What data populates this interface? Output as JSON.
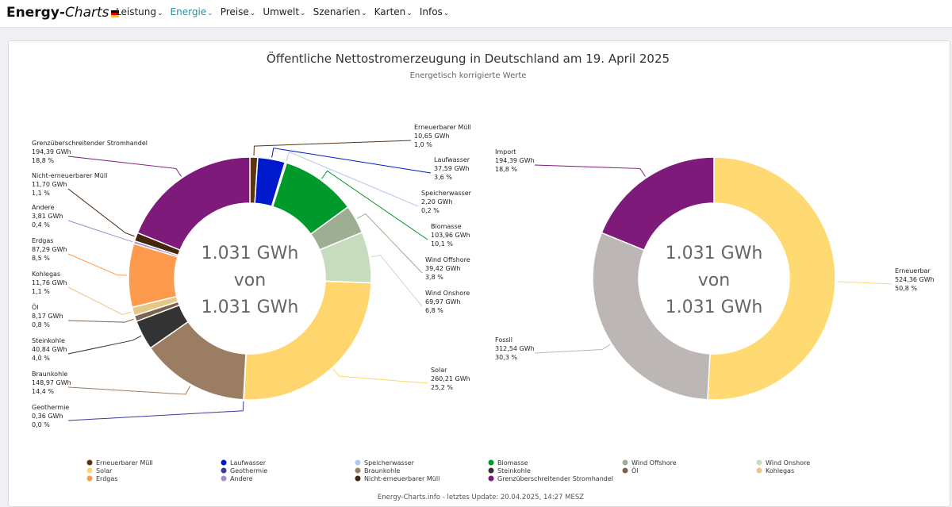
{
  "nav": {
    "brand_bold": "Energy-",
    "brand_italic": "Charts",
    "items": [
      {
        "label": "Leistung",
        "active": false
      },
      {
        "label": "Energie",
        "active": true
      },
      {
        "label": "Preise",
        "active": false
      },
      {
        "label": "Umwelt",
        "active": false
      },
      {
        "label": "Szenarien",
        "active": false
      },
      {
        "label": "Karten",
        "active": false
      },
      {
        "label": "Infos",
        "active": false
      }
    ]
  },
  "chart_data": [
    {
      "type": "pie",
      "title": "Öffentliche Nettostromerzeugung in Deutschland am 19. April 2025",
      "subtitle": "Energetisch korrigierte Werte",
      "center_text": [
        "1.031 GWh",
        "von",
        "1.031 GWh"
      ],
      "unit": "GWh",
      "slices": [
        {
          "name": "Erneuerbarer Müll",
          "value": 10.65,
          "value_label": "10,65 GWh",
          "percent_label": "1,0 %",
          "color": "#5b3410"
        },
        {
          "name": "Laufwasser",
          "value": 37.59,
          "value_label": "37,59 GWh",
          "percent_label": "3,6 %",
          "color": "#0019cc"
        },
        {
          "name": "Speicherwasser",
          "value": 2.2,
          "value_label": "2,20 GWh",
          "percent_label": "0,2 %",
          "color": "#b3c7ee"
        },
        {
          "name": "Biomasse",
          "value": 103.96,
          "value_label": "103,96 GWh",
          "percent_label": "10,1 %",
          "color": "#009a2c"
        },
        {
          "name": "Wind Offshore",
          "value": 39.42,
          "value_label": "39,42 GWh",
          "percent_label": "3,8 %",
          "color": "#9dae92"
        },
        {
          "name": "Wind Onshore",
          "value": 69.97,
          "value_label": "69,97 GWh",
          "percent_label": "6,8 %",
          "color": "#c7dcbf"
        },
        {
          "name": "Solar",
          "value": 260.21,
          "value_label": "260,21 GWh",
          "percent_label": "25,2 %",
          "color": "#ffd66e"
        },
        {
          "name": "Geothermie",
          "value": 0.36,
          "value_label": "0,36 GWh",
          "percent_label": "0,0 %",
          "color": "#3b3ba0"
        },
        {
          "name": "Braunkohle",
          "value": 148.97,
          "value_label": "148,97 GWh",
          "percent_label": "14,4 %",
          "color": "#9a7d63"
        },
        {
          "name": "Steinkohle",
          "value": 40.84,
          "value_label": "40,84 GWh",
          "percent_label": "4,0 %",
          "color": "#333333"
        },
        {
          "name": "Öl",
          "value": 8.17,
          "value_label": "8,17 GWh",
          "percent_label": "0,8 %",
          "color": "#7d6250"
        },
        {
          "name": "Kohlegas",
          "value": 11.76,
          "value_label": "11,76 GWh",
          "percent_label": "1,1 %",
          "color": "#e6c886"
        },
        {
          "name": "Erdgas",
          "value": 87.29,
          "value_label": "87,29 GWh",
          "percent_label": "8,5 %",
          "color": "#fd9a4d"
        },
        {
          "name": "Andere",
          "value": 3.81,
          "value_label": "3,81 GWh",
          "percent_label": "0,4 %",
          "color": "#a38ed1"
        },
        {
          "name": "Nicht-erneuerbarer Müll",
          "value": 11.7,
          "value_label": "11,70 GWh",
          "percent_label": "1,1 %",
          "color": "#43260b"
        },
        {
          "name": "Grenzüberschreitender Stromhandel",
          "value": 194.39,
          "value_label": "194,39 GWh",
          "percent_label": "18,8 %",
          "color": "#7d1a7a"
        }
      ]
    },
    {
      "type": "pie",
      "center_text": [
        "1.031 GWh",
        "von",
        "1.031 GWh"
      ],
      "unit": "GWh",
      "slices": [
        {
          "name": "Erneuerbar",
          "value": 524.36,
          "value_label": "524,36 GWh",
          "percent_label": "50,8 %",
          "color": "#ffda73"
        },
        {
          "name": "Fossil",
          "value": 312.54,
          "value_label": "312,54 GWh",
          "percent_label": "30,3 %",
          "color": "#bcb7b4"
        },
        {
          "name": "Import",
          "value": 194.39,
          "value_label": "194,39 GWh",
          "percent_label": "18,8 %",
          "color": "#7d1a7a"
        }
      ]
    }
  ],
  "legend": [
    {
      "label": "Erneuerbarer Müll",
      "color": "#5b3410"
    },
    {
      "label": "Laufwasser",
      "color": "#0019cc"
    },
    {
      "label": "Speicherwasser",
      "color": "#b3c7ee"
    },
    {
      "label": "Biomasse",
      "color": "#009a2c"
    },
    {
      "label": "Wind Offshore",
      "color": "#9dae92"
    },
    {
      "label": "Wind Onshore",
      "color": "#c7dcbf"
    },
    {
      "label": "Solar",
      "color": "#ffd66e"
    },
    {
      "label": "Geothermie",
      "color": "#3b3ba0"
    },
    {
      "label": "Braunkohle",
      "color": "#9a7d63"
    },
    {
      "label": "Steinkohle",
      "color": "#333333"
    },
    {
      "label": "Öl",
      "color": "#7d6250"
    },
    {
      "label": "Kohlegas",
      "color": "#e6c886"
    },
    {
      "label": "Erdgas",
      "color": "#fd9a4d"
    },
    {
      "label": "Andere",
      "color": "#a38ed1"
    },
    {
      "label": "Nicht-erneuerbarer Müll",
      "color": "#43260b"
    },
    {
      "label": "Grenzüberschreitender Stromhandel",
      "color": "#7d1a7a"
    }
  ],
  "footer": "Energy-Charts.info - letztes Update: 20.04.2025, 14:27 MESZ"
}
